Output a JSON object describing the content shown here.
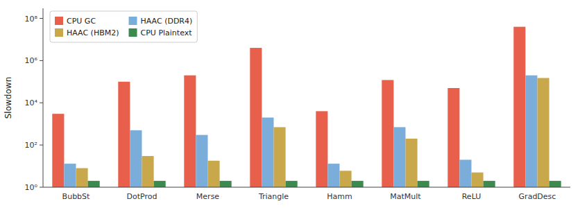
{
  "chart_data": {
    "type": "bar",
    "y_label": "Slowdown",
    "categories": [
      "BubbSt",
      "DotProd",
      "Merse",
      "Triangle",
      "Hamm",
      "MatMult",
      "ReLU",
      "GradDesc"
    ],
    "series": [
      {
        "name": "CPU GC",
        "color": "#e8604c",
        "values": [
          3000,
          100000,
          200000,
          4000000,
          4000,
          120000,
          50000,
          40000000
        ]
      },
      {
        "name": "HAAC (DDR4)",
        "color": "#7aadda",
        "values": [
          13,
          500,
          300,
          2000,
          13,
          700,
          20,
          200000
        ]
      },
      {
        "name": "HAAC (HBM2)",
        "color": "#c9a84c",
        "values": [
          8,
          30,
          18,
          700,
          6,
          200,
          5,
          150000
        ]
      },
      {
        "name": "CPU Plaintext",
        "color": "#3d8a4e",
        "values": [
          2,
          2,
          2,
          2,
          2,
          2,
          2,
          2
        ]
      }
    ],
    "log": "y",
    "ylim": [
      1,
      300000000
    ],
    "yticks": [
      {
        "value": 1,
        "label": "10⁰"
      },
      {
        "value": 100,
        "label": "10²"
      },
      {
        "value": 10000,
        "label": "10⁴"
      },
      {
        "value": 1000000,
        "label": "10⁶"
      },
      {
        "value": 100000000,
        "label": "10⁸"
      }
    ],
    "grid": false,
    "legend": "upper left"
  }
}
